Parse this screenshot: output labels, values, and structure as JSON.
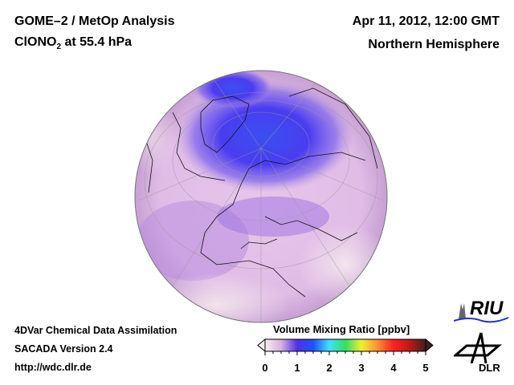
{
  "header": {
    "title_line1": "GOME–2 / MetOp Analysis",
    "species": "ClONO",
    "species_sub": "2",
    "level": " at 55.4 hPa",
    "date": "Apr 11, 2012, 12:00 GMT",
    "region": "Northern Hemisphere"
  },
  "footer": {
    "line1": "4DVar Chemical Data Assimilation",
    "line2": "SACADA Version 2.4",
    "line3": "http://wdc.dlr.de"
  },
  "colorbar": {
    "title": "Volume Mixing Ratio [ppbv]",
    "ticks": [
      "0",
      "1",
      "2",
      "3",
      "4",
      "5"
    ],
    "range": [
      0,
      5
    ],
    "colors": [
      "#f4eef0",
      "#d8b0e0",
      "#5030e8",
      "#2050ff",
      "#40e0ff",
      "#30e060",
      "#f0f030",
      "#ff9030",
      "#ff2020",
      "#c01818",
      "#402020"
    ]
  },
  "logos": {
    "riu": "RIU",
    "dlr": "DLR"
  },
  "map": {
    "projection": "orthographic",
    "background_color": "#e4c4e6",
    "low_color": "#4a3cf0"
  }
}
